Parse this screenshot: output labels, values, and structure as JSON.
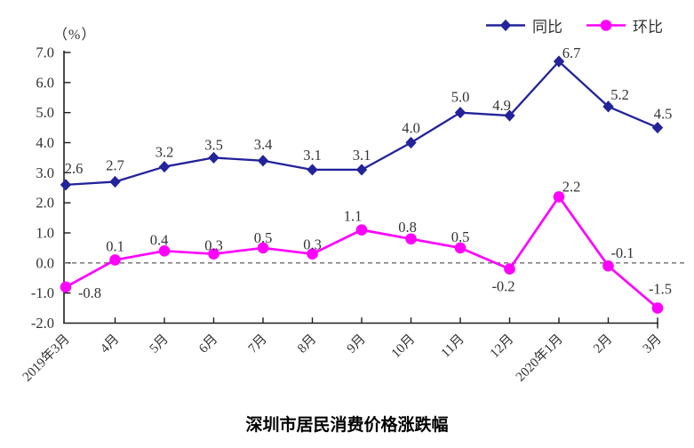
{
  "chart_data": {
    "type": "line",
    "title": "深圳市居民消费价格涨跌幅",
    "unit_label": "（%）",
    "categories": [
      "2019年3月",
      "4月",
      "5月",
      "6月",
      "7月",
      "8月",
      "9月",
      "10月",
      "11月",
      "12月",
      "2020年1月",
      "2月",
      "3月"
    ],
    "series": [
      {
        "name": "同比",
        "marker": "diamond",
        "color": "#23239A",
        "values": [
          2.6,
          2.7,
          3.2,
          3.5,
          3.4,
          3.1,
          3.1,
          4.0,
          5.0,
          4.9,
          6.7,
          5.2,
          4.5
        ]
      },
      {
        "name": "环比",
        "marker": "circle",
        "color": "#FF00FF",
        "values": [
          -0.8,
          0.1,
          0.4,
          0.3,
          0.5,
          0.3,
          1.1,
          0.8,
          0.5,
          -0.2,
          2.2,
          -0.1,
          -1.5
        ]
      }
    ],
    "ylim": [
      -2.0,
      7.0
    ],
    "ytick_step": 1.0,
    "ytick_labels": [
      "7.0",
      "6.0",
      "5.0",
      "4.0",
      "3.0",
      "2.0",
      "1.0",
      "0.0",
      "-1.0",
      "-2.0"
    ],
    "grid": "off",
    "legend_position": "top-right",
    "zero_line": {
      "style": "dashed",
      "color": "#6b6b6b"
    },
    "axis_color": "#1f1f1f",
    "label_color": "#333333"
  }
}
